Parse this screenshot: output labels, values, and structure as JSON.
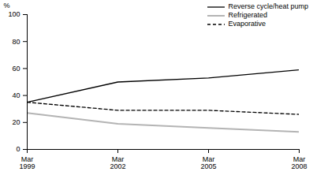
{
  "chart_data": {
    "type": "line",
    "y_label": "%",
    "categories": [
      "Mar\n1999",
      "Mar\n2002",
      "Mar\n2005",
      "Mar\n2008"
    ],
    "series": [
      {
        "name": "Reverse cycle/heat pump",
        "color": "#000000",
        "line_style": "solid",
        "values": [
          35,
          50,
          53,
          59
        ]
      },
      {
        "name": "Refrigerated",
        "color": "#b4b4b4",
        "line_style": "solid",
        "values": [
          27,
          19,
          16,
          13
        ]
      },
      {
        "name": "Evaporative",
        "color": "#000000",
        "line_style": "dashed",
        "values": [
          35,
          29,
          29,
          26
        ]
      }
    ],
    "ylim": [
      0,
      100
    ],
    "yticks": [
      0,
      20,
      40,
      60,
      80,
      100
    ],
    "grid": false,
    "legend": "top-right"
  }
}
